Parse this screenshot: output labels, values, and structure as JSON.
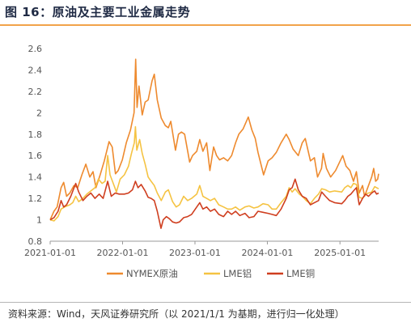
{
  "header": {
    "title": "图 16：原油及主要工业金属走势"
  },
  "footer": {
    "source": "资料来源：Wind，天风证券研究所（以 2021/1/1 为基期，进行归一化处理）"
  },
  "chart_data": {
    "type": "line",
    "title": "",
    "xlabel": "",
    "ylabel": "",
    "x_range": [
      "2021-01-01",
      "2025-07-15"
    ],
    "x_ticks": [
      "2021-01-01",
      "2022-01-01",
      "2023-01-01",
      "2024-01-01",
      "2025-01-01"
    ],
    "ylim": [
      0.8,
      2.6
    ],
    "y_ticks": [
      0.8,
      1,
      1.2,
      1.4,
      1.6,
      1.8,
      2,
      2.2,
      2.4,
      2.6
    ],
    "y_tick_labels": [
      "0.8",
      "1",
      "1.2",
      "1.4",
      "1.6",
      "1.8",
      "2",
      "2.2",
      "2.4",
      "2.6"
    ],
    "grid": false,
    "legend_position": "bottom",
    "series": [
      {
        "name": "NYMEX原油",
        "color": "#ee8a2e",
        "points": [
          [
            "2021-01-01",
            1.0
          ],
          [
            "2021-01-20",
            1.08
          ],
          [
            "2021-02-05",
            1.12
          ],
          [
            "2021-02-25",
            1.3
          ],
          [
            "2021-03-10",
            1.35
          ],
          [
            "2021-03-25",
            1.22
          ],
          [
            "2021-04-10",
            1.25
          ],
          [
            "2021-05-01",
            1.32
          ],
          [
            "2021-05-20",
            1.3
          ],
          [
            "2021-06-10",
            1.42
          ],
          [
            "2021-06-30",
            1.52
          ],
          [
            "2021-07-20",
            1.4
          ],
          [
            "2021-08-05",
            1.45
          ],
          [
            "2021-08-20",
            1.3
          ],
          [
            "2021-09-10",
            1.42
          ],
          [
            "2021-10-01",
            1.55
          ],
          [
            "2021-10-25",
            1.73
          ],
          [
            "2021-11-10",
            1.68
          ],
          [
            "2021-11-26",
            1.43
          ],
          [
            "2021-12-10",
            1.46
          ],
          [
            "2021-12-31",
            1.56
          ],
          [
            "2022-01-20",
            1.72
          ],
          [
            "2022-02-10",
            1.84
          ],
          [
            "2022-02-28",
            2.0
          ],
          [
            "2022-03-08",
            2.5
          ],
          [
            "2022-03-15",
            2.05
          ],
          [
            "2022-03-25",
            2.25
          ],
          [
            "2022-04-10",
            1.98
          ],
          [
            "2022-04-25",
            2.1
          ],
          [
            "2022-05-10",
            2.12
          ],
          [
            "2022-05-30",
            2.3
          ],
          [
            "2022-06-10",
            2.36
          ],
          [
            "2022-06-25",
            2.12
          ],
          [
            "2022-07-15",
            1.95
          ],
          [
            "2022-08-05",
            1.88
          ],
          [
            "2022-08-20",
            1.86
          ],
          [
            "2022-09-01",
            1.92
          ],
          [
            "2022-09-25",
            1.65
          ],
          [
            "2022-10-10",
            1.8
          ],
          [
            "2022-10-25",
            1.82
          ],
          [
            "2022-11-10",
            1.8
          ],
          [
            "2022-12-05",
            1.54
          ],
          [
            "2022-12-20",
            1.6
          ],
          [
            "2023-01-10",
            1.64
          ],
          [
            "2023-01-25",
            1.75
          ],
          [
            "2023-02-10",
            1.64
          ],
          [
            "2023-03-01",
            1.72
          ],
          [
            "2023-03-17",
            1.46
          ],
          [
            "2023-04-05",
            1.68
          ],
          [
            "2023-04-20",
            1.6
          ],
          [
            "2023-05-05",
            1.56
          ],
          [
            "2023-05-25",
            1.58
          ],
          [
            "2023-06-15",
            1.55
          ],
          [
            "2023-07-05",
            1.6
          ],
          [
            "2023-07-25",
            1.72
          ],
          [
            "2023-08-10",
            1.8
          ],
          [
            "2023-09-01",
            1.85
          ],
          [
            "2023-09-27",
            1.96
          ],
          [
            "2023-10-15",
            1.84
          ],
          [
            "2023-11-01",
            1.76
          ],
          [
            "2023-11-15",
            1.63
          ],
          [
            "2023-12-13",
            1.42
          ],
          [
            "2024-01-05",
            1.55
          ],
          [
            "2024-01-25",
            1.58
          ],
          [
            "2024-02-15",
            1.63
          ],
          [
            "2024-03-10",
            1.72
          ],
          [
            "2024-04-05",
            1.8
          ],
          [
            "2024-04-20",
            1.75
          ],
          [
            "2024-05-10",
            1.66
          ],
          [
            "2024-06-05",
            1.6
          ],
          [
            "2024-06-25",
            1.72
          ],
          [
            "2024-07-10",
            1.76
          ],
          [
            "2024-08-05",
            1.55
          ],
          [
            "2024-08-25",
            1.58
          ],
          [
            "2024-09-10",
            1.4
          ],
          [
            "2024-09-30",
            1.48
          ],
          [
            "2024-10-08",
            1.62
          ],
          [
            "2024-10-25",
            1.48
          ],
          [
            "2024-11-15",
            1.4
          ],
          [
            "2024-12-10",
            1.46
          ],
          [
            "2025-01-15",
            1.6
          ],
          [
            "2025-02-01",
            1.5
          ],
          [
            "2025-02-20",
            1.46
          ],
          [
            "2025-03-10",
            1.36
          ],
          [
            "2025-03-25",
            1.45
          ],
          [
            "2025-04-08",
            1.25
          ],
          [
            "2025-04-25",
            1.32
          ],
          [
            "2025-05-05",
            1.22
          ],
          [
            "2025-05-25",
            1.32
          ],
          [
            "2025-06-10",
            1.4
          ],
          [
            "2025-06-20",
            1.48
          ],
          [
            "2025-06-30",
            1.36
          ],
          [
            "2025-07-10",
            1.38
          ],
          [
            "2025-07-15",
            1.43
          ]
        ]
      },
      {
        "name": "LME铝",
        "color": "#f5c342",
        "points": [
          [
            "2021-01-01",
            1.0
          ],
          [
            "2021-01-20",
            0.99
          ],
          [
            "2021-02-10",
            1.03
          ],
          [
            "2021-02-25",
            1.1
          ],
          [
            "2021-03-15",
            1.12
          ],
          [
            "2021-04-10",
            1.14
          ],
          [
            "2021-04-25",
            1.16
          ],
          [
            "2021-05-10",
            1.22
          ],
          [
            "2021-05-25",
            1.17
          ],
          [
            "2021-06-15",
            1.2
          ],
          [
            "2021-07-05",
            1.24
          ],
          [
            "2021-07-25",
            1.27
          ],
          [
            "2021-08-15",
            1.3
          ],
          [
            "2021-09-01",
            1.38
          ],
          [
            "2021-09-20",
            1.34
          ],
          [
            "2021-10-05",
            1.36
          ],
          [
            "2021-10-18",
            1.6
          ],
          [
            "2021-10-30",
            1.42
          ],
          [
            "2021-11-15",
            1.34
          ],
          [
            "2021-12-01",
            1.26
          ],
          [
            "2021-12-20",
            1.38
          ],
          [
            "2022-01-10",
            1.42
          ],
          [
            "2022-01-31",
            1.5
          ],
          [
            "2022-02-15",
            1.62
          ],
          [
            "2022-03-01",
            1.72
          ],
          [
            "2022-03-07",
            1.87
          ],
          [
            "2022-03-14",
            1.65
          ],
          [
            "2022-03-28",
            1.75
          ],
          [
            "2022-04-10",
            1.62
          ],
          [
            "2022-04-25",
            1.52
          ],
          [
            "2022-05-10",
            1.4
          ],
          [
            "2022-05-25",
            1.36
          ],
          [
            "2022-06-10",
            1.32
          ],
          [
            "2022-06-25",
            1.25
          ],
          [
            "2022-07-15",
            1.18
          ],
          [
            "2022-08-05",
            1.26
          ],
          [
            "2022-08-20",
            1.28
          ],
          [
            "2022-09-10",
            1.17
          ],
          [
            "2022-09-28",
            1.12
          ],
          [
            "2022-10-15",
            1.14
          ],
          [
            "2022-11-05",
            1.22
          ],
          [
            "2022-11-25",
            1.18
          ],
          [
            "2022-12-15",
            1.2
          ],
          [
            "2023-01-10",
            1.24
          ],
          [
            "2023-01-25",
            1.32
          ],
          [
            "2023-02-10",
            1.22
          ],
          [
            "2023-03-01",
            1.2
          ],
          [
            "2023-03-20",
            1.18
          ],
          [
            "2023-04-10",
            1.2
          ],
          [
            "2023-05-01",
            1.14
          ],
          [
            "2023-05-25",
            1.12
          ],
          [
            "2023-06-15",
            1.1
          ],
          [
            "2023-07-05",
            1.1
          ],
          [
            "2023-07-25",
            1.12
          ],
          [
            "2023-08-15",
            1.09
          ],
          [
            "2023-09-10",
            1.12
          ],
          [
            "2023-10-01",
            1.13
          ],
          [
            "2023-10-25",
            1.11
          ],
          [
            "2023-11-15",
            1.12
          ],
          [
            "2023-12-10",
            1.15
          ],
          [
            "2024-01-05",
            1.14
          ],
          [
            "2024-01-25",
            1.1
          ],
          [
            "2024-02-15",
            1.1
          ],
          [
            "2024-03-10",
            1.16
          ],
          [
            "2024-04-05",
            1.22
          ],
          [
            "2024-04-20",
            1.3
          ],
          [
            "2024-05-05",
            1.26
          ],
          [
            "2024-05-20",
            1.29
          ],
          [
            "2024-06-10",
            1.24
          ],
          [
            "2024-06-25",
            1.22
          ],
          [
            "2024-07-15",
            1.18
          ],
          [
            "2024-08-05",
            1.15
          ],
          [
            "2024-08-25",
            1.2
          ],
          [
            "2024-09-15",
            1.24
          ],
          [
            "2024-10-01",
            1.29
          ],
          [
            "2024-10-20",
            1.28
          ],
          [
            "2024-11-10",
            1.26
          ],
          [
            "2024-12-05",
            1.27
          ],
          [
            "2025-01-10",
            1.26
          ],
          [
            "2025-01-25",
            1.3
          ],
          [
            "2025-02-10",
            1.32
          ],
          [
            "2025-02-25",
            1.3
          ],
          [
            "2025-03-10",
            1.34
          ],
          [
            "2025-03-25",
            1.33
          ],
          [
            "2025-04-08",
            1.21
          ],
          [
            "2025-04-25",
            1.2
          ],
          [
            "2025-05-10",
            1.24
          ],
          [
            "2025-05-25",
            1.25
          ],
          [
            "2025-06-10",
            1.26
          ],
          [
            "2025-06-25",
            1.31
          ],
          [
            "2025-07-05",
            1.3
          ],
          [
            "2025-07-15",
            1.29
          ]
        ]
      },
      {
        "name": "LME铜",
        "color": "#cf3e1f",
        "points": [
          [
            "2021-01-01",
            1.0
          ],
          [
            "2021-01-20",
            1.02
          ],
          [
            "2021-02-10",
            1.08
          ],
          [
            "2021-02-25",
            1.18
          ],
          [
            "2021-03-10",
            1.12
          ],
          [
            "2021-03-25",
            1.14
          ],
          [
            "2021-04-15",
            1.22
          ],
          [
            "2021-05-10",
            1.34
          ],
          [
            "2021-05-25",
            1.26
          ],
          [
            "2021-06-15",
            1.18
          ],
          [
            "2021-07-05",
            1.22
          ],
          [
            "2021-07-25",
            1.25
          ],
          [
            "2021-08-15",
            1.2
          ],
          [
            "2021-09-05",
            1.24
          ],
          [
            "2021-09-25",
            1.2
          ],
          [
            "2021-10-18",
            1.36
          ],
          [
            "2021-11-05",
            1.22
          ],
          [
            "2021-11-25",
            1.25
          ],
          [
            "2021-12-15",
            1.24
          ],
          [
            "2022-01-10",
            1.24
          ],
          [
            "2022-01-31",
            1.25
          ],
          [
            "2022-02-20",
            1.28
          ],
          [
            "2022-03-07",
            1.36
          ],
          [
            "2022-03-20",
            1.3
          ],
          [
            "2022-04-05",
            1.33
          ],
          [
            "2022-04-25",
            1.27
          ],
          [
            "2022-05-10",
            1.21
          ],
          [
            "2022-05-25",
            1.2
          ],
          [
            "2022-06-10",
            1.18
          ],
          [
            "2022-06-25",
            1.08
          ],
          [
            "2022-07-14",
            0.92
          ],
          [
            "2022-07-25",
            1.0
          ],
          [
            "2022-08-10",
            1.03
          ],
          [
            "2022-08-25",
            1.01
          ],
          [
            "2022-09-10",
            0.98
          ],
          [
            "2022-09-28",
            0.97
          ],
          [
            "2022-10-15",
            0.98
          ],
          [
            "2022-11-05",
            1.02
          ],
          [
            "2022-11-25",
            1.03
          ],
          [
            "2022-12-15",
            1.05
          ],
          [
            "2023-01-10",
            1.12
          ],
          [
            "2023-01-25",
            1.16
          ],
          [
            "2023-02-10",
            1.1
          ],
          [
            "2023-03-01",
            1.12
          ],
          [
            "2023-03-20",
            1.08
          ],
          [
            "2023-04-10",
            1.1
          ],
          [
            "2023-05-01",
            1.05
          ],
          [
            "2023-05-25",
            1.03
          ],
          [
            "2023-06-15",
            1.08
          ],
          [
            "2023-07-05",
            1.05
          ],
          [
            "2023-07-25",
            1.08
          ],
          [
            "2023-08-15",
            1.04
          ],
          [
            "2023-09-10",
            1.06
          ],
          [
            "2023-10-01",
            1.02
          ],
          [
            "2023-10-25",
            1.03
          ],
          [
            "2023-11-15",
            1.08
          ],
          [
            "2023-12-10",
            1.07
          ],
          [
            "2024-01-05",
            1.06
          ],
          [
            "2024-01-25",
            1.05
          ],
          [
            "2024-02-15",
            1.04
          ],
          [
            "2024-03-10",
            1.1
          ],
          [
            "2024-04-05",
            1.2
          ],
          [
            "2024-04-20",
            1.28
          ],
          [
            "2024-05-05",
            1.3
          ],
          [
            "2024-05-20",
            1.38
          ],
          [
            "2024-06-05",
            1.28
          ],
          [
            "2024-06-25",
            1.22
          ],
          [
            "2024-07-15",
            1.2
          ],
          [
            "2024-08-05",
            1.14
          ],
          [
            "2024-08-25",
            1.16
          ],
          [
            "2024-09-15",
            1.18
          ],
          [
            "2024-10-01",
            1.26
          ],
          [
            "2024-10-20",
            1.22
          ],
          [
            "2024-11-10",
            1.18
          ],
          [
            "2024-12-05",
            1.16
          ],
          [
            "2025-01-10",
            1.15
          ],
          [
            "2025-01-25",
            1.18
          ],
          [
            "2025-02-10",
            1.22
          ],
          [
            "2025-02-25",
            1.24
          ],
          [
            "2025-03-10",
            1.27
          ],
          [
            "2025-03-25",
            1.3
          ],
          [
            "2025-04-08",
            1.14
          ],
          [
            "2025-04-25",
            1.2
          ],
          [
            "2025-05-10",
            1.24
          ],
          [
            "2025-05-25",
            1.22
          ],
          [
            "2025-06-10",
            1.25
          ],
          [
            "2025-06-25",
            1.27
          ],
          [
            "2025-07-05",
            1.24
          ],
          [
            "2025-07-15",
            1.25
          ]
        ]
      }
    ]
  }
}
